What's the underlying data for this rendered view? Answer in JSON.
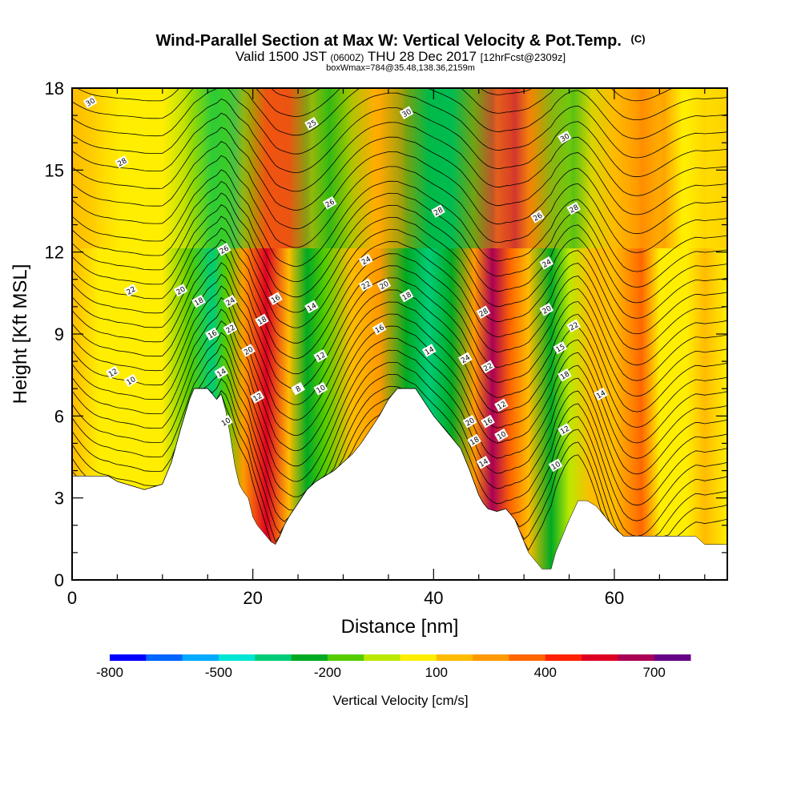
{
  "chart_data": {
    "type": "heatmap",
    "title": "Wind-Parallel Section at Max W: Vertical Velocity & Pot.Temp.",
    "title_mark": "(C)",
    "subtitle": {
      "valid_prefix": "Valid 1500 JST",
      "zulu": "(0600Z)",
      "date": "THU 28 Dec 2017",
      "forecast": "[12hrFcst@2309z]"
    },
    "box_info": "boxWmax=784@35.48,138.36,2159m",
    "xlabel": "Distance [nm]",
    "ylabel": "Height [Kft MSL]",
    "xlim": [
      0,
      72.5
    ],
    "ylim": [
      0,
      18
    ],
    "x_ticks": [
      0,
      20,
      40,
      60
    ],
    "y_ticks": [
      0,
      3,
      6,
      9,
      12,
      15,
      18
    ],
    "colorbar": {
      "label": "Vertical Velocity [cm/s]",
      "min": -800,
      "max": 800,
      "step": 100,
      "tick_labels": [
        -800,
        -500,
        -200,
        100,
        400,
        700
      ],
      "colors": [
        "#0000ff",
        "#0066ff",
        "#00aaff",
        "#00e5d4",
        "#00cc77",
        "#00aa22",
        "#55cc00",
        "#bbe800",
        "#ffee00",
        "#ffbb00",
        "#ff9900",
        "#ff6600",
        "#ff2200",
        "#dd0022",
        "#aa0055",
        "#660088"
      ]
    },
    "terrain": [
      [
        0,
        3.8
      ],
      [
        2,
        3.8
      ],
      [
        4,
        3.8
      ],
      [
        5,
        3.6
      ],
      [
        6,
        3.5
      ],
      [
        8,
        3.3
      ],
      [
        10,
        3.5
      ],
      [
        11,
        4.3
      ],
      [
        12,
        5.5
      ],
      [
        13,
        6.6
      ],
      [
        13.5,
        7.0
      ],
      [
        15,
        7.0
      ],
      [
        15.5,
        6.8
      ],
      [
        16,
        6.6
      ],
      [
        16.5,
        6.8
      ],
      [
        17,
        6.2
      ],
      [
        17.5,
        5.3
      ],
      [
        18,
        4.2
      ],
      [
        18.5,
        3.5
      ],
      [
        19,
        3.2
      ],
      [
        19.5,
        3.0
      ],
      [
        20,
        2.3
      ],
      [
        20.5,
        2.0
      ],
      [
        21,
        1.8
      ],
      [
        21.5,
        1.6
      ],
      [
        22,
        1.4
      ],
      [
        22.5,
        1.3
      ],
      [
        23,
        1.6
      ],
      [
        23.5,
        2.0
      ],
      [
        24,
        2.3
      ],
      [
        25,
        2.8
      ],
      [
        26,
        3.3
      ],
      [
        27,
        3.6
      ],
      [
        28,
        3.8
      ],
      [
        29,
        4.0
      ],
      [
        30,
        4.3
      ],
      [
        31,
        4.6
      ],
      [
        32,
        5.0
      ],
      [
        33,
        5.5
      ],
      [
        34,
        6.0
      ],
      [
        35,
        6.6
      ],
      [
        36,
        7.0
      ],
      [
        38,
        7.0
      ],
      [
        39,
        6.5
      ],
      [
        40,
        6.0
      ],
      [
        41,
        5.6
      ],
      [
        42,
        5.2
      ],
      [
        43,
        4.8
      ],
      [
        44,
        4.0
      ],
      [
        45,
        3.1
      ],
      [
        45.5,
        2.8
      ],
      [
        46,
        2.6
      ],
      [
        47,
        2.5
      ],
      [
        48,
        2.6
      ],
      [
        49,
        2.2
      ],
      [
        50,
        1.4
      ],
      [
        50.5,
        1.0
      ],
      [
        51,
        0.8
      ],
      [
        51.5,
        0.6
      ],
      [
        52,
        0.4
      ],
      [
        53,
        0.4
      ],
      [
        53.5,
        1.0
      ],
      [
        54,
        1.4
      ],
      [
        55,
        2.2
      ],
      [
        56,
        2.9
      ],
      [
        57,
        2.9
      ],
      [
        58,
        2.7
      ],
      [
        59,
        2.3
      ],
      [
        60,
        1.9
      ],
      [
        61,
        1.6
      ],
      [
        62,
        1.6
      ],
      [
        64,
        1.6
      ],
      [
        66,
        1.6
      ],
      [
        68,
        1.6
      ],
      [
        69,
        1.6
      ],
      [
        70,
        1.3
      ],
      [
        72.5,
        1.3
      ]
    ],
    "vertical_velocity_bands": [
      {
        "x": 0,
        "w": 100
      },
      {
        "x": 3,
        "w": 60
      },
      {
        "x": 6,
        "w": 80
      },
      {
        "x": 10,
        "w": 40
      },
      {
        "x": 13,
        "w": -150
      },
      {
        "x": 15.5,
        "w": -380
      },
      {
        "x": 17,
        "w": -200
      },
      {
        "x": 19,
        "w": 250
      },
      {
        "x": 21.5,
        "w": 500
      },
      {
        "x": 24,
        "w": 150
      },
      {
        "x": 26,
        "w": -250
      },
      {
        "x": 28,
        "w": -150
      },
      {
        "x": 31,
        "w": 150
      },
      {
        "x": 34,
        "w": 250
      },
      {
        "x": 37,
        "w": -250
      },
      {
        "x": 39.5,
        "w": -400
      },
      {
        "x": 42,
        "w": -250
      },
      {
        "x": 44.5,
        "w": 200
      },
      {
        "x": 46.5,
        "w": 650
      },
      {
        "x": 48.5,
        "w": 300
      },
      {
        "x": 50.5,
        "w": 100
      },
      {
        "x": 53,
        "w": -250
      },
      {
        "x": 55,
        "w": -100
      },
      {
        "x": 57.5,
        "w": 150
      },
      {
        "x": 60,
        "w": 100
      },
      {
        "x": 63,
        "w": 300
      },
      {
        "x": 65,
        "w": 80
      },
      {
        "x": 68,
        "w": 50
      },
      {
        "x": 70,
        "w": 120
      },
      {
        "x": 72.5,
        "w": 80
      }
    ],
    "contour_labels": [
      {
        "x": 2,
        "y": 17.5,
        "text": "30"
      },
      {
        "x": 5.5,
        "y": 15.3,
        "text": "28"
      },
      {
        "x": 6.5,
        "y": 10.6,
        "text": "22"
      },
      {
        "x": 12,
        "y": 10.6,
        "text": "20"
      },
      {
        "x": 14,
        "y": 10.2,
        "text": "18"
      },
      {
        "x": 15.5,
        "y": 9.0,
        "text": "16"
      },
      {
        "x": 16.5,
        "y": 7.6,
        "text": "14"
      },
      {
        "x": 17,
        "y": 5.8,
        "text": "10"
      },
      {
        "x": 4.5,
        "y": 7.6,
        "text": "12"
      },
      {
        "x": 6.5,
        "y": 7.3,
        "text": "10"
      },
      {
        "x": 16.8,
        "y": 12.1,
        "text": "26"
      },
      {
        "x": 17.5,
        "y": 10.2,
        "text": "24"
      },
      {
        "x": 17.5,
        "y": 9.2,
        "text": "22"
      },
      {
        "x": 19.5,
        "y": 8.4,
        "text": "20"
      },
      {
        "x": 20.5,
        "y": 6.7,
        "text": "12"
      },
      {
        "x": 21,
        "y": 9.5,
        "text": "18"
      },
      {
        "x": 22.5,
        "y": 10.3,
        "text": "16"
      },
      {
        "x": 26.5,
        "y": 16.7,
        "text": "25"
      },
      {
        "x": 28.5,
        "y": 13.8,
        "text": "26"
      },
      {
        "x": 26.5,
        "y": 10.0,
        "text": "14"
      },
      {
        "x": 27.5,
        "y": 8.2,
        "text": "12"
      },
      {
        "x": 27.5,
        "y": 7.0,
        "text": "10"
      },
      {
        "x": 25,
        "y": 7.0,
        "text": "8"
      },
      {
        "x": 32.5,
        "y": 11.7,
        "text": "24"
      },
      {
        "x": 32.5,
        "y": 10.8,
        "text": "22"
      },
      {
        "x": 34.5,
        "y": 10.8,
        "text": "20"
      },
      {
        "x": 37,
        "y": 10.4,
        "text": "18"
      },
      {
        "x": 34,
        "y": 9.2,
        "text": "16"
      },
      {
        "x": 37,
        "y": 17.1,
        "text": "30"
      },
      {
        "x": 40.5,
        "y": 13.5,
        "text": "28"
      },
      {
        "x": 39.5,
        "y": 8.4,
        "text": "14"
      },
      {
        "x": 45.5,
        "y": 9.8,
        "text": "28"
      },
      {
        "x": 43.5,
        "y": 8.1,
        "text": "24"
      },
      {
        "x": 46,
        "y": 7.8,
        "text": "22"
      },
      {
        "x": 44,
        "y": 5.8,
        "text": "20"
      },
      {
        "x": 44.5,
        "y": 5.1,
        "text": "18"
      },
      {
        "x": 46,
        "y": 5.8,
        "text": "16"
      },
      {
        "x": 47.5,
        "y": 6.4,
        "text": "12"
      },
      {
        "x": 47.5,
        "y": 5.3,
        "text": "10"
      },
      {
        "x": 45.5,
        "y": 4.3,
        "text": "14"
      },
      {
        "x": 54.5,
        "y": 16.2,
        "text": "30"
      },
      {
        "x": 51.5,
        "y": 13.3,
        "text": "26"
      },
      {
        "x": 55.5,
        "y": 13.6,
        "text": "28"
      },
      {
        "x": 52.5,
        "y": 11.6,
        "text": "24"
      },
      {
        "x": 52.5,
        "y": 9.9,
        "text": "20"
      },
      {
        "x": 55.5,
        "y": 9.3,
        "text": "22"
      },
      {
        "x": 54,
        "y": 8.5,
        "text": "15"
      },
      {
        "x": 54.5,
        "y": 7.5,
        "text": "18"
      },
      {
        "x": 54.5,
        "y": 5.5,
        "text": "12"
      },
      {
        "x": 53.5,
        "y": 4.2,
        "text": "10"
      },
      {
        "x": 58.5,
        "y": 6.8,
        "text": "14"
      }
    ]
  }
}
